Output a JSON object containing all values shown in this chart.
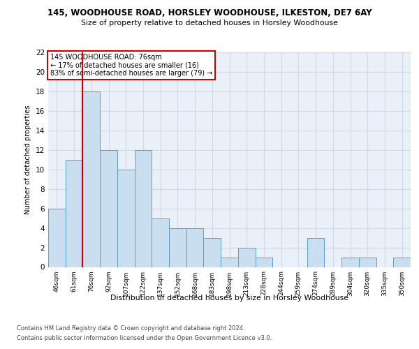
{
  "title_line1": "145, WOODHOUSE ROAD, HORSLEY WOODHOUSE, ILKESTON, DE7 6AY",
  "title_line2": "Size of property relative to detached houses in Horsley Woodhouse",
  "xlabel": "Distribution of detached houses by size in Horsley Woodhouse",
  "ylabel": "Number of detached properties",
  "categories": [
    "46sqm",
    "61sqm",
    "76sqm",
    "92sqm",
    "107sqm",
    "122sqm",
    "137sqm",
    "152sqm",
    "168sqm",
    "183sqm",
    "198sqm",
    "213sqm",
    "228sqm",
    "244sqm",
    "259sqm",
    "274sqm",
    "289sqm",
    "304sqm",
    "320sqm",
    "335sqm",
    "350sqm"
  ],
  "values": [
    6,
    11,
    18,
    12,
    10,
    12,
    5,
    4,
    4,
    3,
    1,
    2,
    1,
    0,
    0,
    3,
    0,
    1,
    1,
    0,
    1
  ],
  "bar_color": "#c9dff0",
  "bar_edge_color": "#5b9bd5",
  "highlight_index": 2,
  "highlight_line_color": "#cc0000",
  "ylim": [
    0,
    22
  ],
  "yticks": [
    0,
    2,
    4,
    6,
    8,
    10,
    12,
    14,
    16,
    18,
    20,
    22
  ],
  "annotation_text": "145 WOODHOUSE ROAD: 76sqm\n← 17% of detached houses are smaller (16)\n83% of semi-detached houses are larger (79) →",
  "annotation_box_color": "#ffffff",
  "annotation_box_edge_color": "#cc0000",
  "footer_line1": "Contains HM Land Registry data © Crown copyright and database right 2024.",
  "footer_line2": "Contains public sector information licensed under the Open Government Licence v3.0.",
  "grid_color": "#d0d8e8",
  "background_color": "#eaf0f8"
}
